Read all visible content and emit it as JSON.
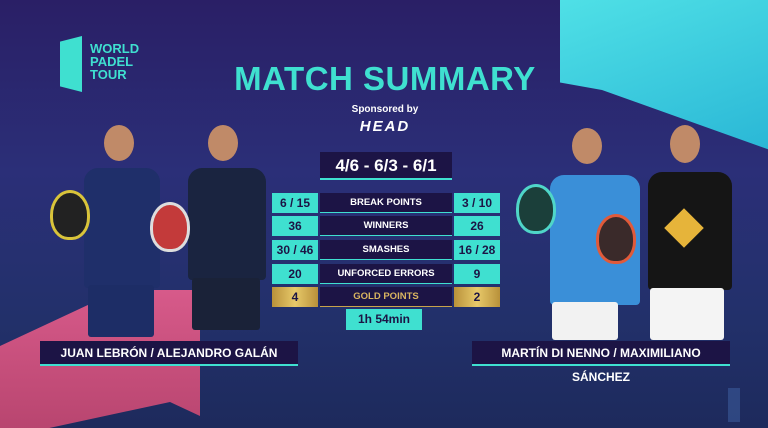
{
  "brand": {
    "logo_text": "WORLD PADEL TOUR"
  },
  "header": {
    "title": "MATCH SUMMARY",
    "sponsored_by": "Sponsored by",
    "sponsor": "HEAD"
  },
  "score": "4/6 - 6/3 - 6/1",
  "stats": [
    {
      "label": "BREAK POINTS",
      "left": "6 / 15",
      "right": "3 / 10"
    },
    {
      "label": "WINNERS",
      "left": "36",
      "right": "26"
    },
    {
      "label": "SMASHES",
      "left": "30 / 46",
      "right": "16 / 28"
    },
    {
      "label": "UNFORCED ERRORS",
      "left": "20",
      "right": "9"
    },
    {
      "label": "GOLD POINTS",
      "left": "4",
      "right": "2"
    }
  ],
  "duration": "1h 54min",
  "teams": {
    "left": "JUAN LEBRÓN / ALEJANDRO GALÁN",
    "right": "MARTÍN DI NENNO / MAXIMILIANO SÁNCHEZ"
  },
  "colors": {
    "accent": "#3fe0d0",
    "panel": "#1c1445",
    "gold": "#d9b560",
    "pink": "#d75a8a"
  }
}
